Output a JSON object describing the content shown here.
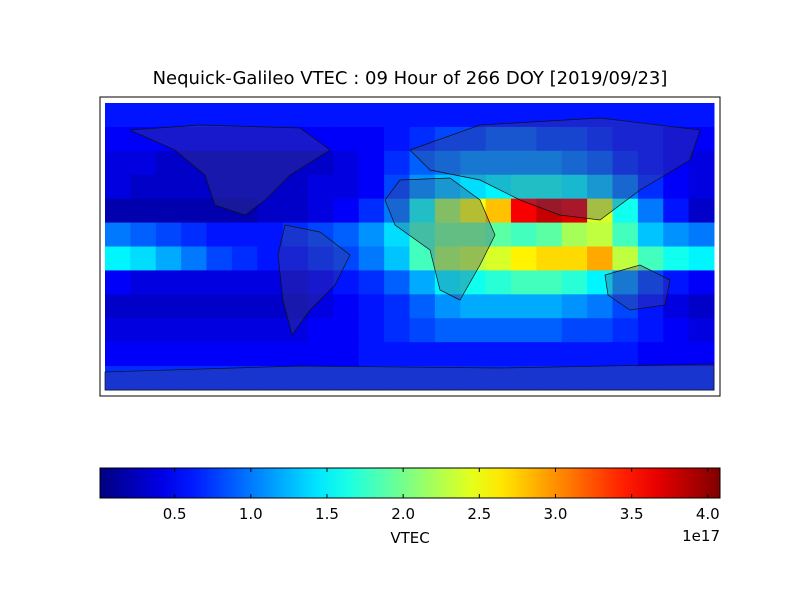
{
  "chart_data": {
    "type": "heatmap",
    "title": "Nequick-Galileo VTEC : 09 Hour of 266 DOY [2019/09/23]",
    "colorbar_label": "VTEC",
    "colorbar_offset_label": "1e17",
    "colormap": "jet",
    "clim": [
      0.01,
      4.08
    ],
    "cticks": [
      0.5,
      {
        "value": 1,
        "label": "1.0"
      },
      1.5,
      {
        "value": 2,
        "label": "2.0"
      },
      2.5,
      {
        "value": 3,
        "label": "3.0"
      },
      3.5,
      {
        "value": 4,
        "label": "4.0"
      }
    ],
    "values": [
      [
        0.6,
        0.6,
        0.6,
        0.6,
        0.6,
        0.6,
        0.6,
        0.6,
        0.6,
        0.6,
        0.6,
        0.6,
        0.6,
        0.6,
        0.6,
        0.6,
        0.6,
        0.6,
        0.6,
        0.6,
        0.6,
        0.6,
        0.6,
        0.6
      ],
      [
        0.5,
        0.5,
        0.5,
        0.5,
        0.5,
        0.5,
        0.5,
        0.5,
        0.5,
        0.5,
        0.5,
        0.6,
        0.7,
        0.8,
        0.8,
        0.9,
        0.9,
        0.8,
        0.8,
        0.7,
        0.6,
        0.6,
        0.5,
        0.5
      ],
      [
        0.4,
        0.4,
        0.3,
        0.3,
        0.3,
        0.3,
        0.3,
        0.3,
        0.3,
        0.4,
        0.5,
        0.7,
        0.9,
        1.0,
        1.1,
        1.1,
        1.1,
        1.1,
        1.0,
        0.9,
        0.7,
        0.6,
        0.5,
        0.4
      ],
      [
        0.4,
        0.3,
        0.3,
        0.3,
        0.3,
        0.3,
        0.3,
        0.3,
        0.4,
        0.4,
        0.5,
        0.8,
        1.1,
        1.3,
        1.4,
        1.5,
        1.6,
        1.6,
        1.5,
        1.3,
        1.0,
        0.7,
        0.5,
        0.4
      ],
      [
        0.2,
        0.2,
        0.2,
        0.2,
        0.2,
        0.2,
        0.3,
        0.3,
        0.4,
        0.5,
        0.7,
        1.0,
        1.6,
        2.2,
        2.5,
        2.8,
        3.6,
        3.8,
        3.7,
        2.4,
        1.6,
        1.0,
        0.6,
        0.3
      ],
      [
        1.0,
        0.9,
        0.8,
        0.7,
        0.6,
        0.6,
        0.6,
        0.7,
        0.8,
        0.9,
        1.1,
        1.4,
        1.8,
        2.0,
        2.0,
        1.9,
        1.8,
        1.9,
        2.2,
        2.3,
        1.8,
        1.3,
        1.1,
        1.0
      ],
      [
        1.5,
        1.4,
        1.2,
        1.0,
        0.8,
        0.7,
        0.6,
        0.6,
        0.7,
        0.8,
        1.0,
        1.3,
        1.8,
        2.2,
        2.3,
        2.4,
        2.6,
        2.7,
        2.7,
        2.9,
        2.3,
        1.8,
        1.6,
        1.5
      ],
      [
        0.5,
        0.4,
        0.4,
        0.4,
        0.4,
        0.4,
        0.4,
        0.4,
        0.5,
        0.6,
        0.7,
        0.9,
        1.2,
        1.5,
        1.6,
        1.7,
        1.8,
        1.8,
        1.7,
        1.5,
        1.1,
        0.8,
        0.6,
        0.5
      ],
      [
        0.3,
        0.3,
        0.3,
        0.3,
        0.3,
        0.3,
        0.3,
        0.3,
        0.4,
        0.5,
        0.6,
        0.7,
        0.9,
        1.1,
        1.2,
        1.2,
        1.2,
        1.2,
        1.1,
        1.0,
        0.8,
        0.6,
        0.4,
        0.3
      ],
      [
        0.4,
        0.4,
        0.4,
        0.4,
        0.4,
        0.4,
        0.4,
        0.4,
        0.5,
        0.5,
        0.6,
        0.7,
        0.8,
        0.9,
        0.9,
        0.9,
        0.9,
        0.9,
        0.8,
        0.8,
        0.7,
        0.6,
        0.5,
        0.4
      ],
      [
        0.5,
        0.5,
        0.5,
        0.5,
        0.5,
        0.5,
        0.5,
        0.5,
        0.5,
        0.5,
        0.6,
        0.6,
        0.6,
        0.6,
        0.6,
        0.6,
        0.6,
        0.6,
        0.6,
        0.6,
        0.6,
        0.5,
        0.5,
        0.5
      ],
      [
        0.7,
        0.7,
        0.7,
        0.7,
        0.7,
        0.7,
        0.7,
        0.7,
        0.7,
        0.7,
        0.7,
        0.7,
        0.7,
        0.7,
        0.7,
        0.7,
        0.7,
        0.7,
        0.7,
        0.7,
        0.7,
        0.7,
        0.7,
        0.7
      ]
    ]
  }
}
